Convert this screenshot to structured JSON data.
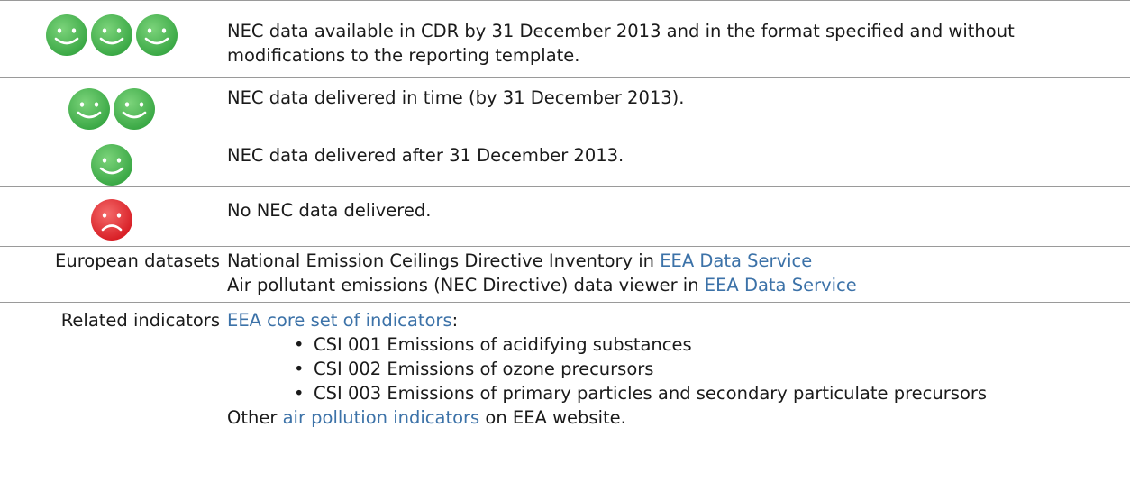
{
  "legend_rows": [
    {
      "text": "NEC data available in CDR by 31 December 2013 and in the format specified and without modifications to the reporting template."
    },
    {
      "text": "NEC data delivered in time (by 31 December 2013)."
    },
    {
      "text": "NEC data delivered after 31 December 2013."
    },
    {
      "text": "No NEC data delivered."
    }
  ],
  "datasets": {
    "label": "European datasets",
    "lines": [
      {
        "text": "National Emission Ceilings Directive Inventory in",
        "link": "EEA Data Service"
      },
      {
        "text": "Air pollutant emissions (NEC Directive) data viewer in",
        "link": "EEA Data Service"
      }
    ]
  },
  "indicators": {
    "label": "Related indicators",
    "intro_link": "EEA core set of indicators",
    "intro_suffix": ":",
    "items": [
      "CSI 001 Emissions of acidifying substances",
      "CSI 002 Emissions of ozone precursors",
      "CSI 003 Emissions of primary particles and secondary particulate precursors"
    ],
    "outro_prefix": "Other",
    "outro_link": "air pollution indicators",
    "outro_suffix": "on EEA website."
  }
}
